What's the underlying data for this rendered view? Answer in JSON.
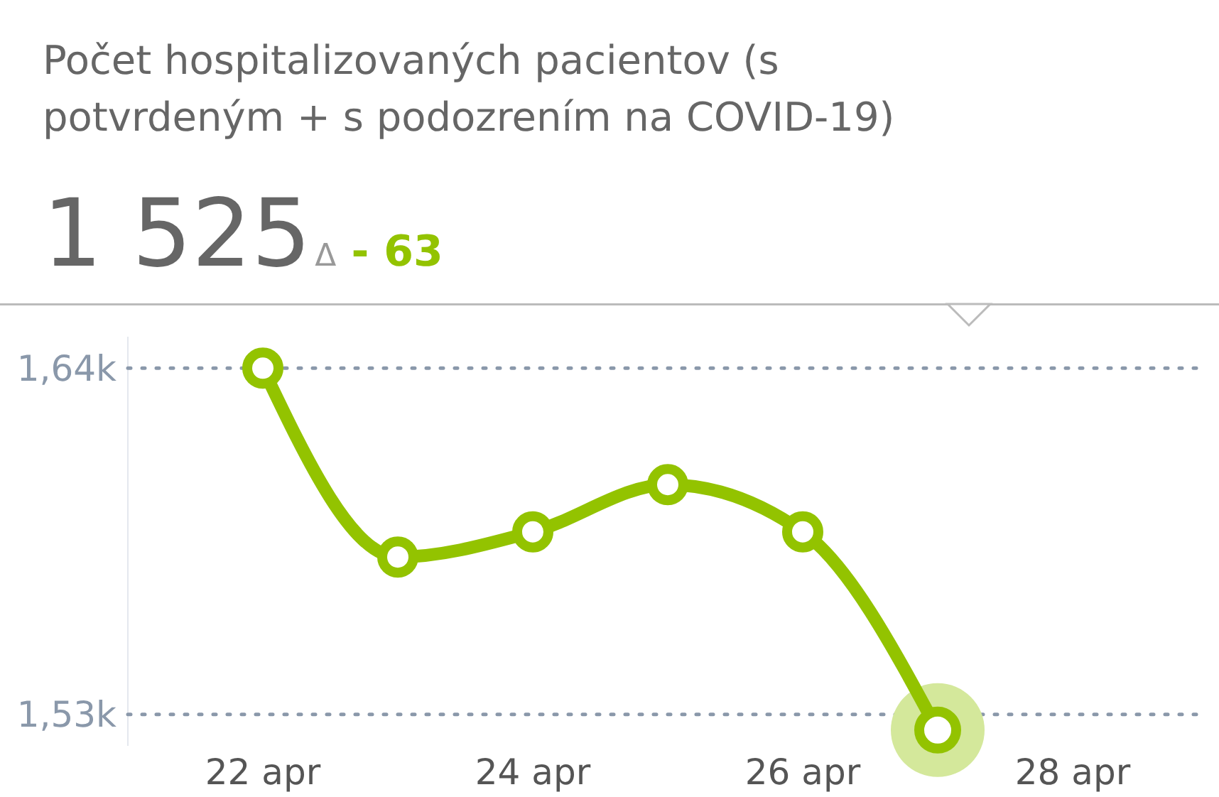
{
  "chart_data": {
    "type": "line",
    "title": "Počet hospitalizovaných pacientov (s potvrdeným + s podozrením na COVID-19)",
    "annotations": [
      "1 525",
      "Δ",
      "- 63"
    ],
    "x": [
      "--04-22",
      "--04-23",
      "--04-24",
      "--04-25",
      "--04-26",
      "--04-27"
    ],
    "series": [
      {
        "color": "#93c300",
        "values": [
          1640,
          1580,
          1588,
          1603,
          1588,
          1525
        ]
      }
    ],
    "xlim": [
      "--04-21",
      "--04-29"
    ],
    "xticks": [
      {
        "value": "--04-22",
        "label": "22 apr"
      },
      {
        "value": "--04-24",
        "label": "24 apr"
      },
      {
        "value": "--04-26",
        "label": "26 apr"
      },
      {
        "value": "--04-28",
        "label": "28 apr"
      }
    ],
    "yticks": [
      {
        "value": 1640,
        "label": "1,64k"
      },
      {
        "value": 1530,
        "label": "1,53k"
      }
    ],
    "ylim": [
      1520,
      1650
    ],
    "grid": "y",
    "marker": "circle",
    "line_style": "solid"
  }
}
